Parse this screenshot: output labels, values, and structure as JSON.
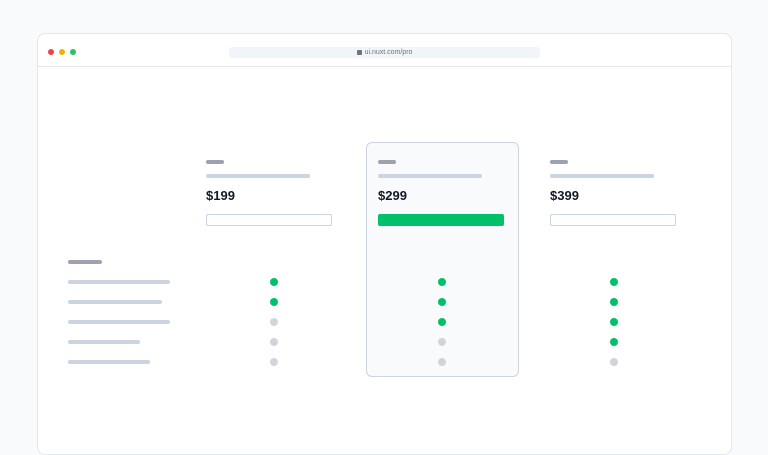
{
  "browser": {
    "url": "ui.nuxt.com/pro",
    "dots": [
      "#ef4444",
      "#eab308",
      "#22c55e"
    ]
  },
  "colors": {
    "accent": "#00c16a",
    "included": "#00c16a",
    "excluded": "#d1d5db"
  },
  "plans": [
    {
      "price": "$199",
      "button": "outline",
      "features": [
        true,
        true,
        false,
        false,
        false
      ]
    },
    {
      "price": "$299",
      "button": "solid",
      "highlighted": true,
      "features": [
        true,
        true,
        true,
        false,
        false
      ]
    },
    {
      "price": "$399",
      "button": "outline",
      "features": [
        true,
        true,
        true,
        true,
        false
      ]
    }
  ]
}
